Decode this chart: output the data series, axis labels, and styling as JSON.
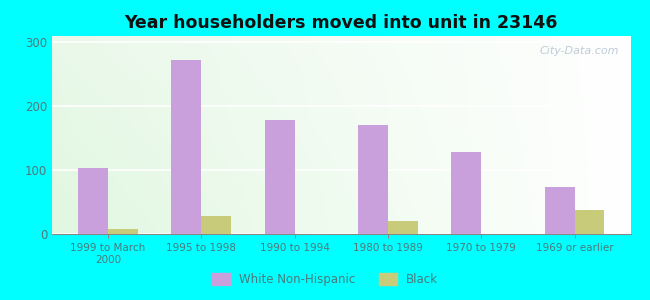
{
  "title": "Year householders moved into unit in 23146",
  "categories": [
    "1999 to March\n2000",
    "1995 to 1998",
    "1990 to 1994",
    "1980 to 1989",
    "1970 to 1979",
    "1969 or earlier"
  ],
  "white_values": [
    103,
    272,
    178,
    170,
    128,
    73
  ],
  "black_values": [
    8,
    28,
    0,
    20,
    0,
    38
  ],
  "white_color": "#c9a0dc",
  "black_color": "#c8cc7a",
  "background_color": "#00ffff",
  "ylim": [
    0,
    310
  ],
  "yticks": [
    0,
    100,
    200,
    300
  ],
  "bar_width": 0.32,
  "watermark": "City-Data.com",
  "legend_labels": [
    "White Non-Hispanic",
    "Black"
  ],
  "tick_color": "#4a7a7a",
  "title_color": "#111111"
}
